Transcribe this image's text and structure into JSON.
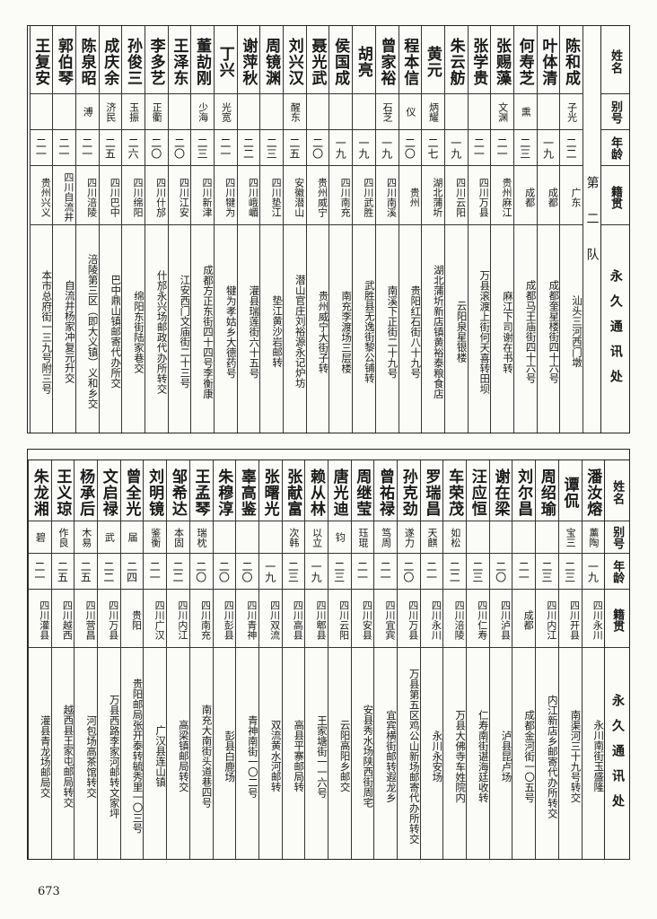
{
  "headers": {
    "name": "姓名",
    "alias": "别号",
    "age": "年龄",
    "native": "籍贯",
    "address": "永久通讯处"
  },
  "top_section": {
    "team_label": "第二队",
    "people": [
      {
        "name": "陈和成",
        "alias": "子光",
        "age": "二二",
        "native": "广东",
        "address": "汕头三河西门墩"
      },
      {
        "name": "叶体清",
        "alias": "",
        "age": "一九",
        "native": "成都",
        "address": "成都奎星楼街四十六号"
      },
      {
        "name": "何寿芝",
        "alias": "熏",
        "age": "二三",
        "native": "成都",
        "address": "成都马王庙街四十六号"
      },
      {
        "name": "张赐藻",
        "alias": "文渊",
        "age": "二一",
        "native": "贵州麻江",
        "address": "麻江下司谢在书转"
      },
      {
        "name": "张学贵",
        "alias": "",
        "age": "二一",
        "native": "四川万县",
        "address": "万县滚渡上街何天喜转田坝"
      },
      {
        "name": "朱云舫",
        "alias": "",
        "age": "一九",
        "native": "四川云阳",
        "address": "云阳泉星银楼"
      },
      {
        "name": "黄元",
        "alias": "炳耀",
        "age": "二七",
        "native": "湖北蒲圻",
        "address": "湖北蒲圻新店镇黄裕泰粮食店"
      },
      {
        "name": "程本信",
        "alias": "仪",
        "age": "二〇",
        "native": "贵州",
        "address": "贵阳红石街八十九号"
      },
      {
        "name": "曾家裕",
        "alias": "石芝",
        "age": "一九",
        "native": "四川南溪",
        "address": "南溪下正街二十九号"
      },
      {
        "name": "胡亮",
        "alias": "",
        "age": "一九",
        "native": "四川武胜",
        "address": "武胜县无逸街黎公铺转"
      },
      {
        "name": "侯国成",
        "alias": "",
        "age": "一九",
        "native": "四川南充",
        "address": "南充李渡场三层楼"
      },
      {
        "name": "聂光武",
        "alias": "",
        "age": "二〇",
        "native": "贵州威宁",
        "address": "贵州威宁大街子转"
      },
      {
        "name": "刘兴汉",
        "alias": "醒东",
        "age": "二五",
        "native": "安徽潜山",
        "address": "潜山官庄刘裕源永记炉坊"
      },
      {
        "name": "周镜渊",
        "alias": "",
        "age": "二三",
        "native": "四川垫江",
        "address": "垫江黄沙岩邮转"
      },
      {
        "name": "谢萍秋",
        "alias": "",
        "age": "二二",
        "native": "四川峨嵋",
        "address": "灌县瑞莲街六十五号"
      },
      {
        "name": "丁兴",
        "alias": "光宽",
        "age": "二一",
        "native": "四川犍为",
        "address": "犍为孝姑乡大德药号"
      },
      {
        "name": "董劼刚",
        "alias": "少海",
        "age": "二三",
        "native": "四川新津",
        "address": "成都方正东街四十四号李衡康"
      },
      {
        "name": "王泽东",
        "alias": "",
        "age": "二〇",
        "native": "四川江安",
        "address": "江安西门文庙街二十三号"
      },
      {
        "name": "李多艺",
        "alias": "正衢",
        "age": "二〇",
        "native": "四川什邡",
        "address": "什邡永兴场邮政代办所转交"
      },
      {
        "name": "孙俊三",
        "alias": "玉振",
        "age": "二六",
        "native": "四川绵阳",
        "address": "绵阳东街陆家巷交"
      },
      {
        "name": "成庆余",
        "alias": "济民",
        "age": "二五",
        "native": "四川巴中",
        "address": "巴中鼎山镇邮寄代办所交"
      },
      {
        "name": "陈泉昭",
        "alias": "溥",
        "age": "二一",
        "native": "四川涪陵",
        "address": "涪陵第三区（即大义镇）义和乡交"
      },
      {
        "name": "郭伯琴",
        "alias": "",
        "age": "二一",
        "native": "四川自流井",
        "address": "自流井杨家冲复元升交"
      },
      {
        "name": "王复安",
        "alias": "",
        "age": "二一",
        "native": "贵州兴义",
        "address": "本市总府街一三九号附三号"
      }
    ]
  },
  "bottom_section": {
    "people": [
      {
        "name": "潘汝熔",
        "alias": "薰陶",
        "age": "一九",
        "native": "四川永川",
        "address": "永川南街玉盛隆"
      },
      {
        "name": "谭侃",
        "alias": "宝三",
        "age": "二三",
        "native": "四川开县",
        "address": "南渠河三十九号转交"
      },
      {
        "name": "周绍瑜",
        "alias": "",
        "age": "二三",
        "native": "四川内江",
        "address": "内江新店乡邮寄代办所转交"
      },
      {
        "name": "刘尔昌",
        "alias": "",
        "age": "二一",
        "native": "成都",
        "address": "成都金河街一〇五号"
      },
      {
        "name": "谢在梁",
        "alias": "",
        "age": "二〇",
        "native": "四川泸县",
        "address": "泸县昆卢场"
      },
      {
        "name": "汪应恒",
        "alias": "",
        "age": "二三",
        "native": "四川仁寿",
        "address": "仁寿南街谌海廷收转"
      },
      {
        "name": "车荣茂",
        "alias": "如松",
        "age": "二二",
        "native": "四川涪陵",
        "address": "万县大佛寺车姓院内"
      },
      {
        "name": "罗瑞昌",
        "alias": "天麒",
        "age": "二一",
        "native": "四川永川",
        "address": "永川永安场"
      },
      {
        "name": "孙克劲",
        "alias": "遂力",
        "age": "二〇",
        "native": "四川万县",
        "address": "万县第五区鸡公山新场邮寄代办所转交"
      },
      {
        "name": "曾祐禄",
        "alias": "笃周",
        "age": "二一",
        "native": "四川宜宾",
        "address": "宜宾横街邮转遐龙乡"
      },
      {
        "name": "周继莹",
        "alias": "珏琨",
        "age": "二一",
        "native": "四川安县",
        "address": "安县秀水场陕西街周宅"
      },
      {
        "name": "唐光迪",
        "alias": "钧",
        "age": "二三",
        "native": "四川云阳",
        "address": "云阳高阳乡邮交"
      },
      {
        "name": "赖从林",
        "alias": "以立",
        "age": "一九",
        "native": "四川郫县",
        "address": "王家塘街一一六号"
      },
      {
        "name": "张献富",
        "alias": "次韩",
        "age": "二三",
        "native": "四川高县",
        "address": "高县平寨邮局转"
      },
      {
        "name": "张曙光",
        "alias": "",
        "age": "一九",
        "native": "四川双流",
        "address": "双流黄水河邮转"
      },
      {
        "name": "辜高鉴",
        "alias": "",
        "age": "二〇",
        "native": "四川青神",
        "address": "青神南街一〇二号"
      },
      {
        "name": "朱穆淳",
        "alias": "",
        "age": "二〇",
        "native": "四川彭县",
        "address": "彭县白鹿场"
      },
      {
        "name": "王孟琴",
        "alias": "瑞枕",
        "age": "二〇",
        "native": "四川南充",
        "address": "南充大南街头道巷四号"
      },
      {
        "name": "邹希达",
        "alias": "本固",
        "age": "二二",
        "native": "四川内江",
        "address": "高梁镇邮局转交"
      },
      {
        "name": "刘明镜",
        "alias": "鉴衡",
        "age": "二一",
        "native": "四川广汉",
        "address": "广汉县连山镇"
      },
      {
        "name": "曾全光",
        "alias": "届",
        "age": "二四",
        "native": "贵阳",
        "address": "贵阳邮局张开泰转毓秀里一〇三号"
      },
      {
        "name": "文启禄",
        "alias": "武",
        "age": "二二",
        "native": "四川万县",
        "address": "万县西路李家河邮转文家坪"
      },
      {
        "name": "杨承后",
        "alias": "木易",
        "age": "二五",
        "native": "四川营昌",
        "address": "河包场高茶馆转交"
      },
      {
        "name": "王义琼",
        "alias": "作良",
        "age": "二五",
        "native": "四川越西",
        "address": "越西县王家屯邮局转交"
      },
      {
        "name": "朱龙湘",
        "alias": "碧",
        "age": "二一",
        "native": "四川灌县",
        "address": "灌县青龙场邮局交"
      }
    ]
  },
  "page_number": "673"
}
